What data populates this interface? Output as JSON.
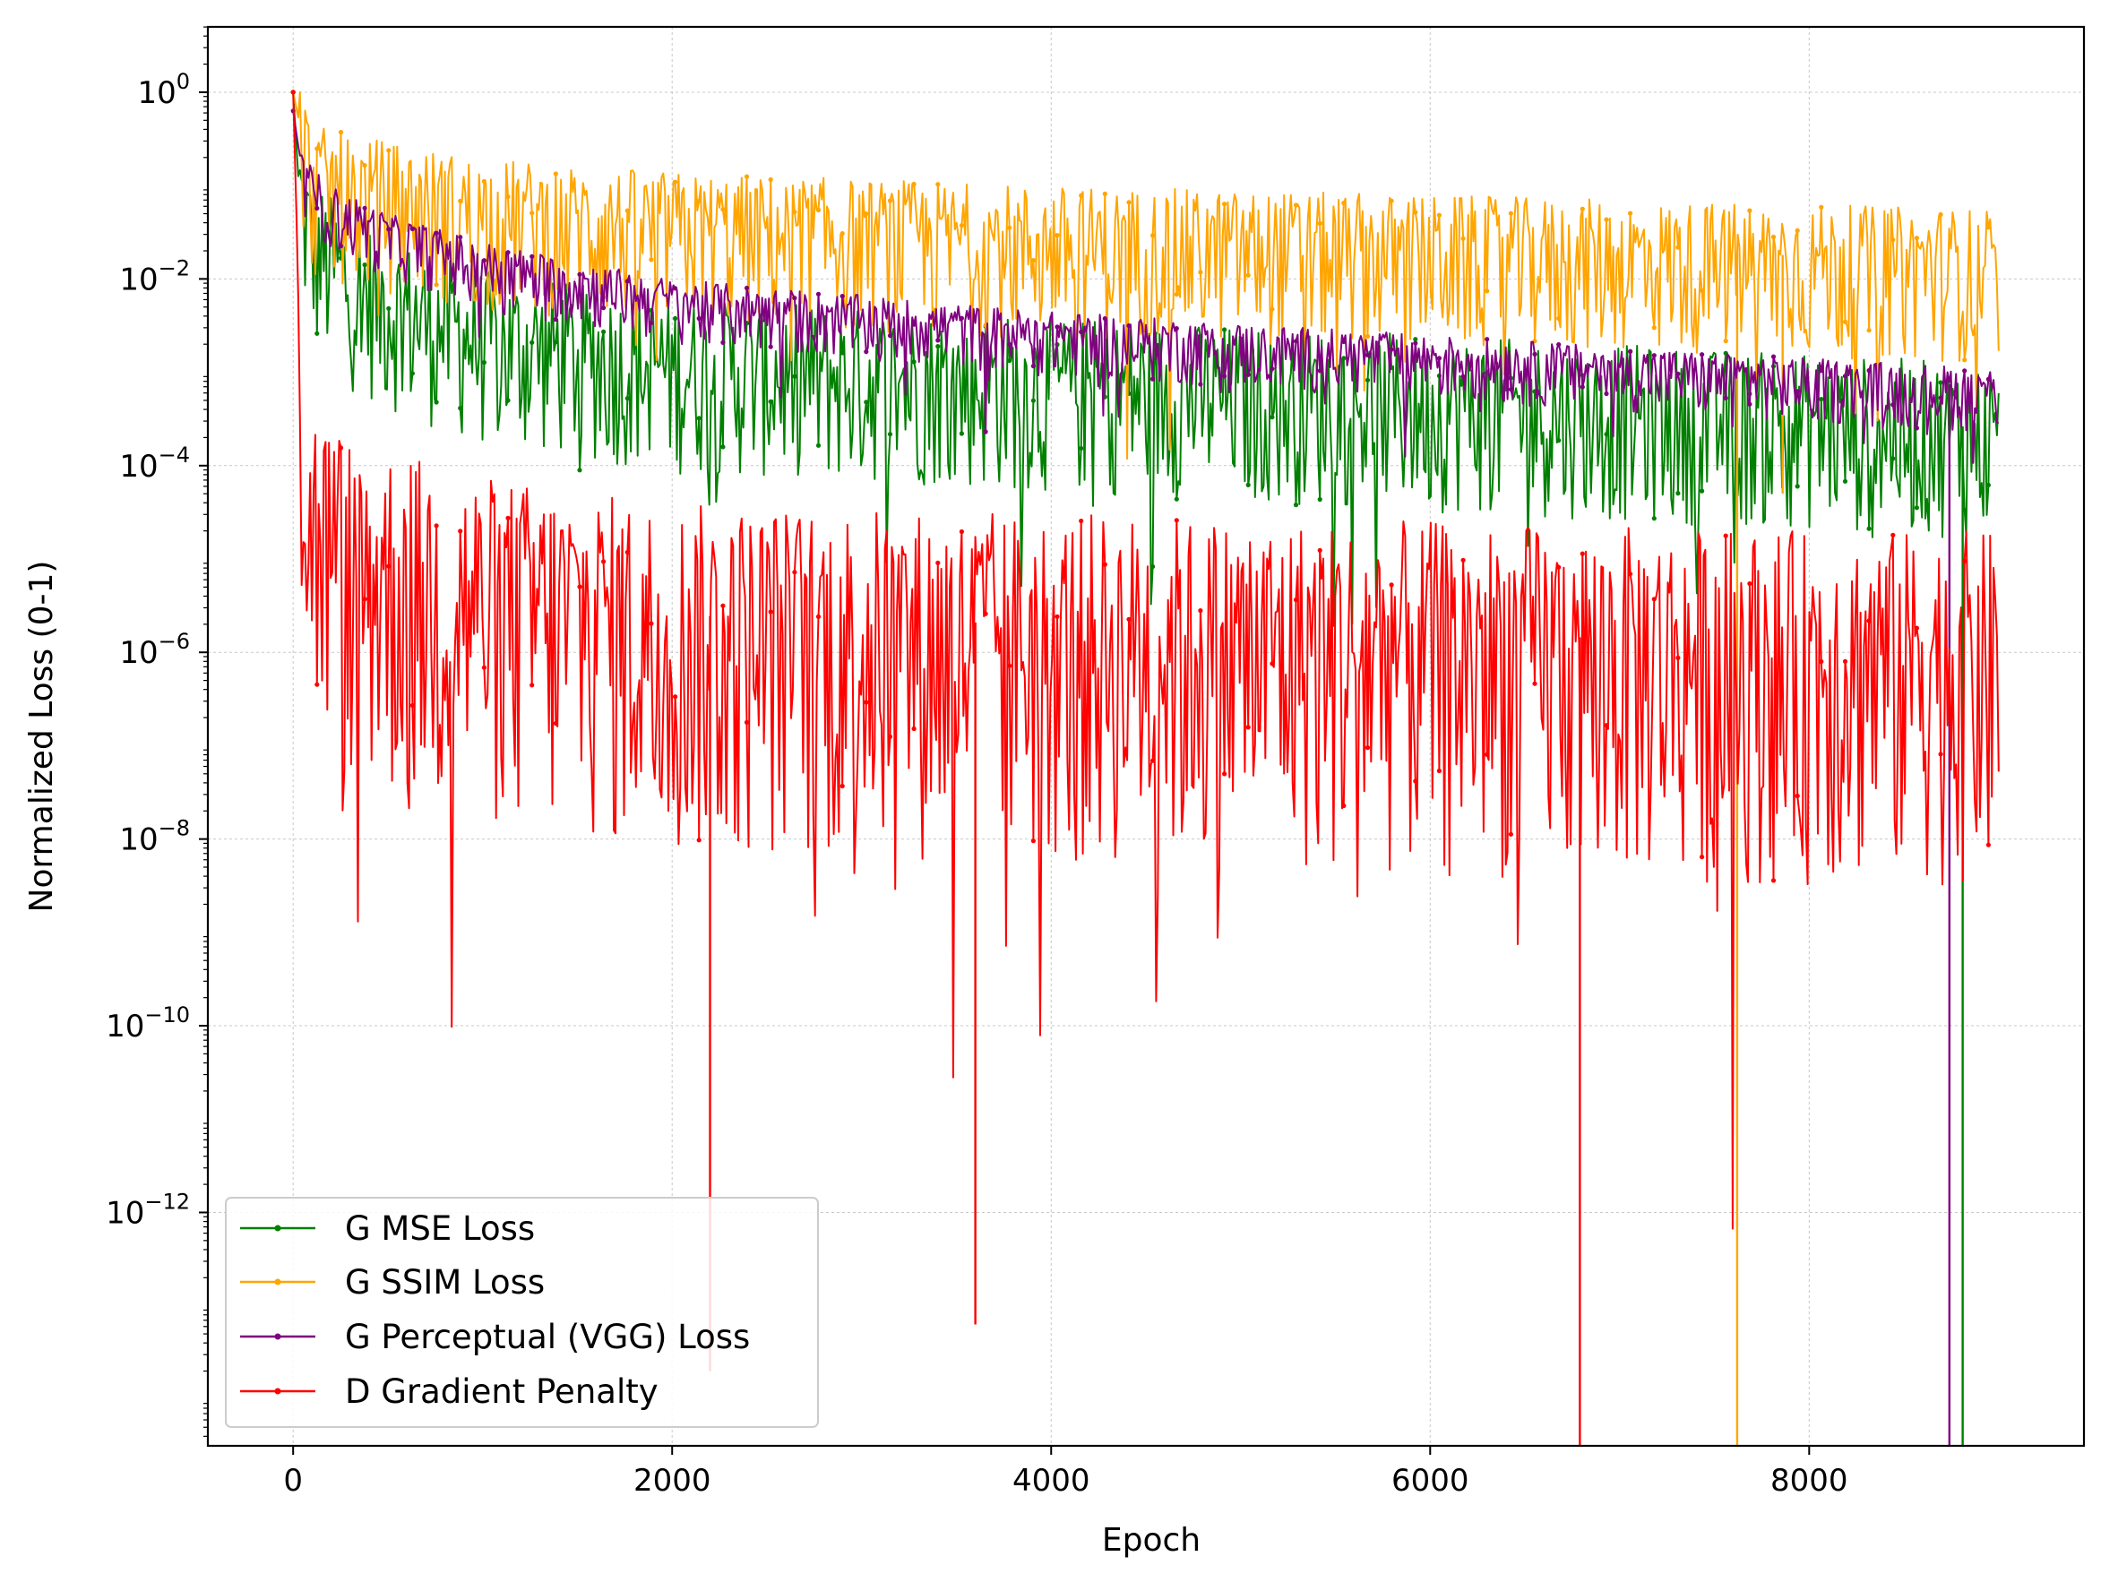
{
  "chart_data": {
    "type": "line",
    "title": "",
    "xlabel": "Epoch",
    "ylabel": "Normalized Loss (0-1)",
    "xlim": [
      -450,
      9450
    ],
    "ylim_log10": [
      -14.5,
      0.7
    ],
    "yscale": "log",
    "grid": true,
    "legend_position": "lower-left",
    "x_ticks": [
      0,
      2000,
      4000,
      6000,
      8000
    ],
    "x_tick_labels": [
      "0",
      "2000",
      "4000",
      "6000",
      "8000"
    ],
    "y_ticks_log10": [
      0,
      -2,
      -4,
      -6,
      -8,
      -10,
      -12
    ],
    "y_tick_labels": [
      {
        "base": "10",
        "exp": "0"
      },
      {
        "base": "10",
        "exp": "−2"
      },
      {
        "base": "10",
        "exp": "−4"
      },
      {
        "base": "10",
        "exp": "−6"
      },
      {
        "base": "10",
        "exp": "−8"
      },
      {
        "base": "10",
        "exp": "−10"
      },
      {
        "base": "10",
        "exp": "−12"
      }
    ],
    "series": [
      {
        "name": "G MSE Loss",
        "color": "#008000",
        "x_range": [
          0,
          9000
        ],
        "trend_log10": [
          [
            0,
            0
          ],
          [
            30,
            -1.0
          ],
          [
            100,
            -1.6
          ],
          [
            300,
            -2.0
          ],
          [
            600,
            -2.3
          ],
          [
            1000,
            -2.6
          ],
          [
            2000,
            -2.9
          ],
          [
            4000,
            -3.1
          ],
          [
            6000,
            -3.3
          ],
          [
            8000,
            -3.5
          ],
          [
            9000,
            -3.6
          ]
        ],
        "band_log10": [
          0.7,
          1.2
        ],
        "drops": [
          {
            "x": 8810,
            "to": "bottom"
          }
        ]
      },
      {
        "name": "G SSIM Loss",
        "color": "#FFA500",
        "x_range": [
          0,
          9000
        ],
        "trend_log10": [
          [
            0,
            0
          ],
          [
            50,
            -0.5
          ],
          [
            100,
            -0.9
          ],
          [
            300,
            -1.0
          ],
          [
            1000,
            -1.25
          ],
          [
            2000,
            -1.4
          ],
          [
            4000,
            -1.55
          ],
          [
            6000,
            -1.65
          ],
          [
            8000,
            -1.75
          ],
          [
            9000,
            -1.8
          ]
        ],
        "band_log10": [
          0.55,
          1.1
        ],
        "drops": [
          {
            "x": 7620,
            "to": "bottom"
          },
          {
            "x": 7860,
            "to_log10": -4.3
          }
        ]
      },
      {
        "name": "G Perceptual (VGG) Loss",
        "color": "#800080",
        "x_range": [
          0,
          9000
        ],
        "trend_log10": [
          [
            0,
            -0.2
          ],
          [
            50,
            -0.9
          ],
          [
            200,
            -1.2
          ],
          [
            500,
            -1.5
          ],
          [
            1000,
            -1.8
          ],
          [
            2000,
            -2.2
          ],
          [
            4000,
            -2.55
          ],
          [
            6000,
            -2.8
          ],
          [
            8000,
            -3.05
          ],
          [
            9000,
            -3.15
          ]
        ],
        "band_log10": [
          0.2,
          0.5
        ],
        "drops": [
          {
            "x": 8740,
            "to": "bottom"
          }
        ]
      },
      {
        "name": "D Gradient Penalty",
        "color": "#FF0000",
        "x_range": [
          0,
          9000
        ],
        "trend_log10": [
          [
            0,
            0
          ],
          [
            20,
            -1.5
          ],
          [
            40,
            -3.5
          ],
          [
            80,
            -4.4
          ],
          [
            300,
            -4.9
          ],
          [
            1000,
            -5.3
          ],
          [
            2000,
            -5.6
          ],
          [
            4000,
            -5.7
          ],
          [
            6000,
            -5.8
          ],
          [
            8000,
            -5.9
          ],
          [
            9000,
            -5.9
          ]
        ],
        "band_log10": [
          1.2,
          2.6
        ],
        "drops": [
          {
            "x": 6790,
            "to": "bottom"
          },
          {
            "x": 3600,
            "to_log10": -13.2
          },
          {
            "x": 2200,
            "to_log10": -13.7
          }
        ]
      }
    ]
  }
}
